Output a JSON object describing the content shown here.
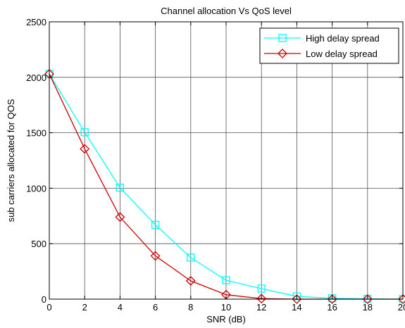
{
  "chart_data": {
    "type": "line",
    "title": "Channel allocation Vs QoS level",
    "xlabel": "SNR (dB)",
    "ylabel": "sub carriers allocated for QOS",
    "xlim": [
      0,
      20
    ],
    "ylim": [
      0,
      2500
    ],
    "xticks": [
      0,
      2,
      4,
      6,
      8,
      10,
      12,
      14,
      16,
      18,
      20
    ],
    "yticks": [
      0,
      500,
      1000,
      1500,
      2000,
      2500
    ],
    "grid": true,
    "legend_position": "top-right",
    "x": [
      0,
      2,
      4,
      6,
      8,
      10,
      12,
      14,
      16,
      18,
      20
    ],
    "series": [
      {
        "name": "High delay spread",
        "color": "#00ffff",
        "marker": "square",
        "values": [
          2030,
          1505,
          1005,
          670,
          375,
          170,
          95,
          25,
          8,
          3,
          0
        ]
      },
      {
        "name": "Low delay spread",
        "color": "#cc0000",
        "marker": "diamond",
        "values": [
          2030,
          1355,
          740,
          390,
          165,
          40,
          5,
          0,
          0,
          0,
          0
        ]
      }
    ]
  }
}
